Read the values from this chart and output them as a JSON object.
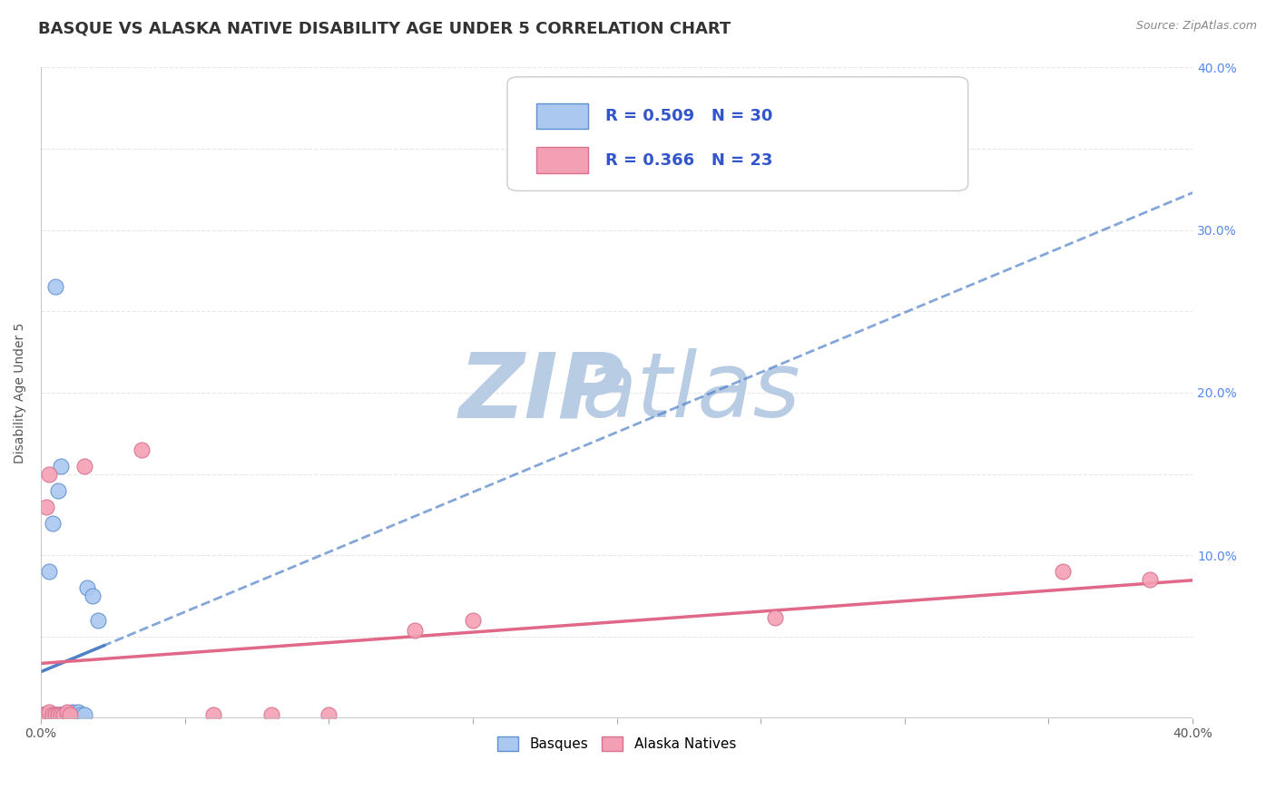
{
  "title": "BASQUE VS ALASKA NATIVE DISABILITY AGE UNDER 5 CORRELATION CHART",
  "source": "Source: ZipAtlas.com",
  "ylabel": "Disability Age Under 5",
  "xlim": [
    0.0,
    0.4
  ],
  "ylim": [
    0.0,
    0.4
  ],
  "x_ticks": [
    0.0,
    0.05,
    0.1,
    0.15,
    0.2,
    0.25,
    0.3,
    0.35,
    0.4
  ],
  "y_ticks": [
    0.0,
    0.05,
    0.1,
    0.15,
    0.2,
    0.25,
    0.3,
    0.35,
    0.4
  ],
  "watermark_zip": "ZIP",
  "watermark_atlas": "atlas",
  "basques_color": "#aac8f0",
  "alaska_color": "#f4a0b4",
  "basques_edge_color": "#6090d0",
  "alaska_edge_color": "#d87090",
  "basques_line_color": "#5080c8",
  "alaska_line_color": "#e06888",
  "R_basques": 0.509,
  "N_basques": 30,
  "R_alaska": 0.366,
  "N_alaska": 23,
  "basques_points": [
    [
      0.0,
      0.0
    ],
    [
      0.001,
      0.0
    ],
    [
      0.001,
      0.002
    ],
    [
      0.002,
      0.0
    ],
    [
      0.002,
      0.002
    ],
    [
      0.003,
      0.0
    ],
    [
      0.003,
      0.002
    ],
    [
      0.004,
      0.0
    ],
    [
      0.004,
      0.002
    ],
    [
      0.005,
      0.0
    ],
    [
      0.005,
      0.002
    ],
    [
      0.006,
      0.002
    ],
    [
      0.007,
      0.0
    ],
    [
      0.007,
      0.002
    ],
    [
      0.008,
      0.002
    ],
    [
      0.009,
      0.002
    ],
    [
      0.01,
      0.002
    ],
    [
      0.011,
      0.004
    ],
    [
      0.012,
      0.002
    ],
    [
      0.013,
      0.004
    ],
    [
      0.014,
      0.002
    ],
    [
      0.015,
      0.002
    ],
    [
      0.003,
      0.09
    ],
    [
      0.004,
      0.12
    ],
    [
      0.006,
      0.14
    ],
    [
      0.007,
      0.155
    ],
    [
      0.005,
      0.265
    ],
    [
      0.016,
      0.08
    ],
    [
      0.018,
      0.075
    ],
    [
      0.02,
      0.06
    ]
  ],
  "alaska_points": [
    [
      0.0,
      0.002
    ],
    [
      0.001,
      0.002
    ],
    [
      0.002,
      0.002
    ],
    [
      0.003,
      0.004
    ],
    [
      0.004,
      0.002
    ],
    [
      0.005,
      0.002
    ],
    [
      0.006,
      0.002
    ],
    [
      0.007,
      0.002
    ],
    [
      0.008,
      0.002
    ],
    [
      0.009,
      0.004
    ],
    [
      0.01,
      0.002
    ],
    [
      0.002,
      0.13
    ],
    [
      0.003,
      0.15
    ],
    [
      0.015,
      0.155
    ],
    [
      0.035,
      0.165
    ],
    [
      0.06,
      0.002
    ],
    [
      0.08,
      0.002
    ],
    [
      0.1,
      0.002
    ],
    [
      0.13,
      0.054
    ],
    [
      0.15,
      0.06
    ],
    [
      0.255,
      0.062
    ],
    [
      0.355,
      0.09
    ],
    [
      0.385,
      0.085
    ]
  ],
  "title_fontsize": 13,
  "label_fontsize": 10,
  "tick_fontsize": 10,
  "legend_fontsize": 13,
  "watermark_color": "#cfe0f0",
  "background_color": "#ffffff",
  "grid_color": "#e8e8e8"
}
